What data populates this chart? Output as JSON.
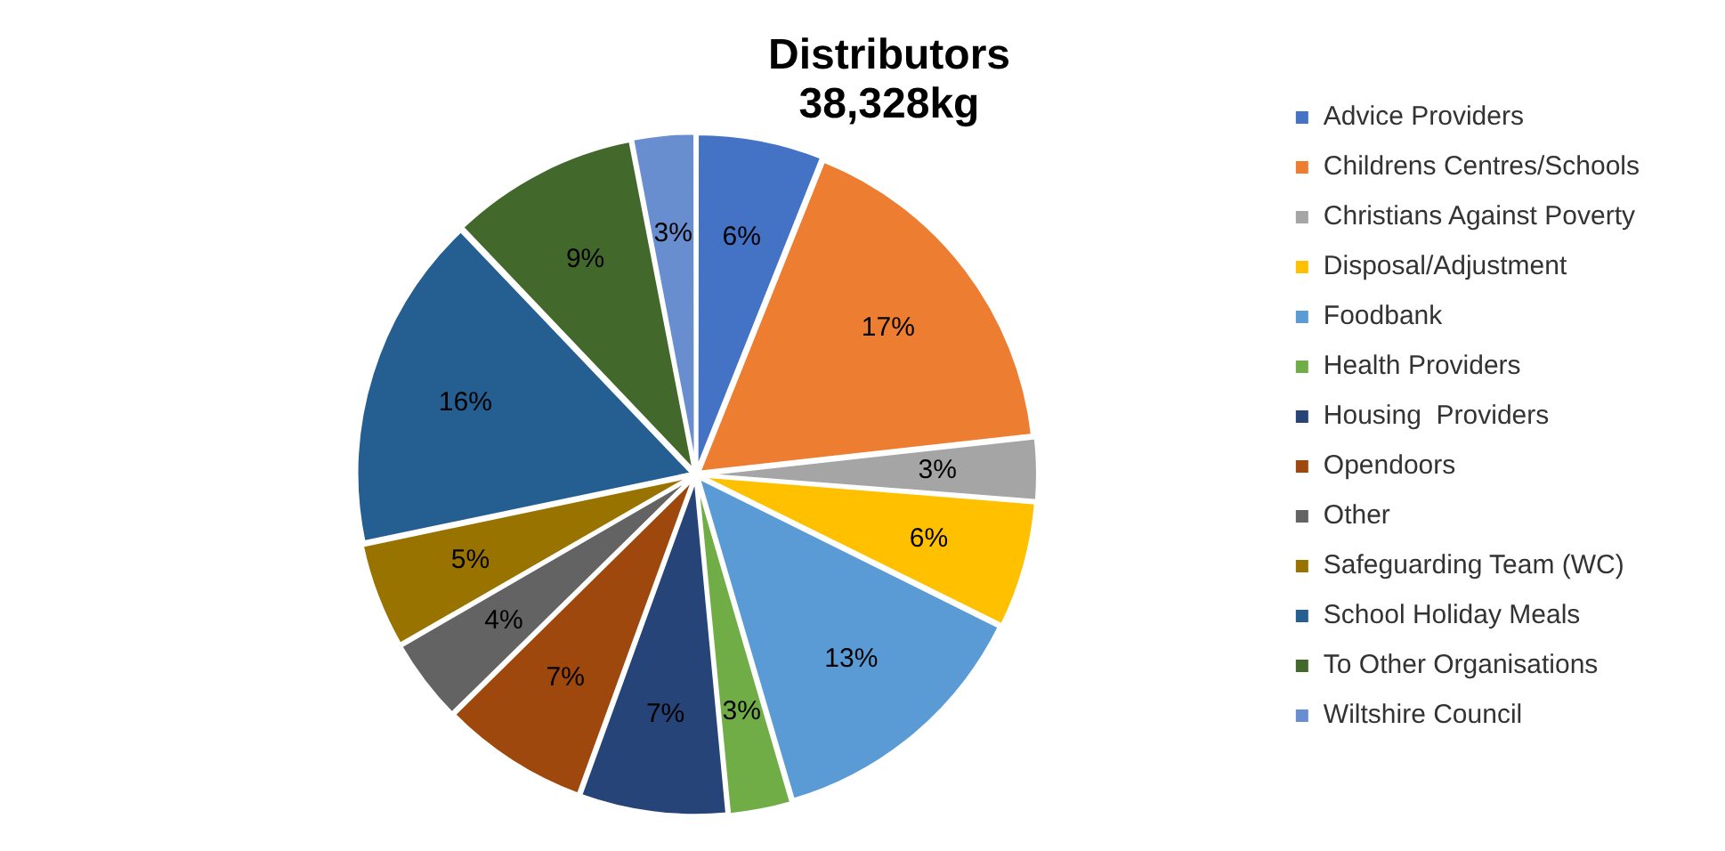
{
  "chart_data": {
    "type": "pie",
    "title": "Distributors\n38,328kg",
    "categories": [
      "Advice Providers",
      "Childrens Centres/Schools",
      "Christians Against Poverty",
      "Disposal/Adjustment",
      "Foodbank",
      "Health Providers",
      "Housing  Providers",
      "Opendoors",
      "Other",
      "Safeguarding Team (WC)",
      "School Holiday Meals",
      "To Other Organisations",
      "Wiltshire Council"
    ],
    "values": [
      6,
      17,
      3,
      6,
      13,
      3,
      7,
      7,
      4,
      5,
      16,
      9,
      3
    ],
    "value_labels": [
      "6%",
      "17%",
      "3%",
      "6%",
      "13%",
      "3%",
      "7%",
      "7%",
      "4%",
      "5%",
      "16%",
      "9%",
      "3%"
    ],
    "colors": [
      "#4472c4",
      "#ed7d31",
      "#a5a5a5",
      "#ffc000",
      "#5b9bd5",
      "#70ad47",
      "#264478",
      "#9e480e",
      "#636363",
      "#997300",
      "#255e91",
      "#43682b",
      "#698ed0"
    ],
    "legend": "right"
  }
}
